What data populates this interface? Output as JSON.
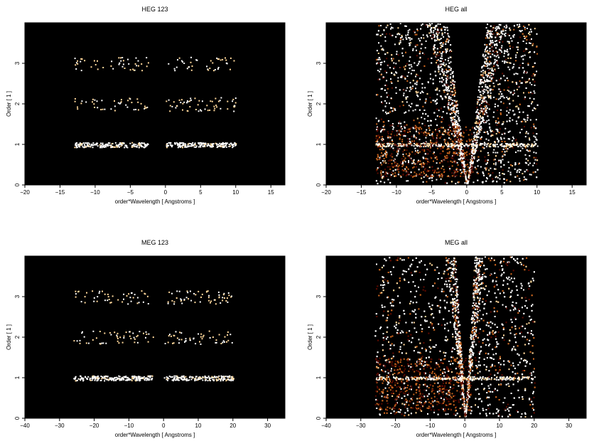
{
  "colors": {
    "background": "#000000",
    "heat_low": "#5a0a00",
    "heat_mid": "#c8641e",
    "heat_high": "#ffd89a",
    "heat_max": "#ffffff"
  },
  "chart_data": [
    {
      "type": "heatmap",
      "title": "HEG 123",
      "xlabel": "order*Wavelength [ Angstroms ]",
      "ylabel": "Order [ 1 ]",
      "xlim": [
        -20,
        17
      ],
      "ylim": [
        0,
        4
      ],
      "xticks": [
        "−20",
        "−15",
        "−10",
        "−5",
        "0",
        "5",
        "10",
        "15"
      ],
      "yticks": [
        "0",
        "1",
        "2",
        "3"
      ],
      "grid": false,
      "pattern": "orders",
      "wavelength_range_first_order": [
        -13,
        10
      ],
      "orders": [
        1,
        2,
        3
      ],
      "gap": [
        -2.5,
        0
      ]
    },
    {
      "type": "heatmap",
      "title": "HEG all",
      "xlabel": "order*Wavelength [ Angstroms ]",
      "ylabel": "Order [ 1 ]",
      "xlim": [
        -20,
        17
      ],
      "ylim": [
        0,
        4
      ],
      "xticks": [
        "−20",
        "−15",
        "−10",
        "−5",
        "0",
        "5",
        "10",
        "15"
      ],
      "yticks": [
        "0",
        "1",
        "2",
        "3"
      ],
      "grid": false,
      "pattern": "all",
      "wavelength_range_first_order": [
        -13,
        10
      ],
      "cone_edges": [
        [
          -5,
          4
        ],
        [
          5,
          4
        ]
      ]
    },
    {
      "type": "heatmap",
      "title": "MEG 123",
      "xlabel": "order*Wavelength [ Angstroms ]",
      "ylabel": "Order [ 1 ]",
      "xlim": [
        -40,
        35
      ],
      "ylim": [
        0,
        4
      ],
      "xticks": [
        "−40",
        "−30",
        "−20",
        "−10",
        "0",
        "10",
        "20",
        "30"
      ],
      "yticks": [
        "0",
        "1",
        "2",
        "3"
      ],
      "grid": false,
      "pattern": "orders",
      "wavelength_range_first_order": [
        -26,
        20
      ],
      "orders": [
        1,
        2,
        3
      ],
      "gap": [
        -3,
        0
      ]
    },
    {
      "type": "heatmap",
      "title": "MEG all",
      "xlabel": "order*Wavelength [ Angstroms ]",
      "ylabel": "Order [ 1 ]",
      "xlim": [
        -40,
        35
      ],
      "ylim": [
        0,
        4
      ],
      "xticks": [
        "−40",
        "−30",
        "−20",
        "−10",
        "0",
        "10",
        "20",
        "30"
      ],
      "yticks": [
        "0",
        "1",
        "2",
        "3"
      ],
      "grid": false,
      "pattern": "all",
      "wavelength_range_first_order": [
        -26,
        20
      ],
      "cone_edges": [
        [
          -5,
          4
        ],
        [
          5,
          4
        ]
      ]
    }
  ]
}
